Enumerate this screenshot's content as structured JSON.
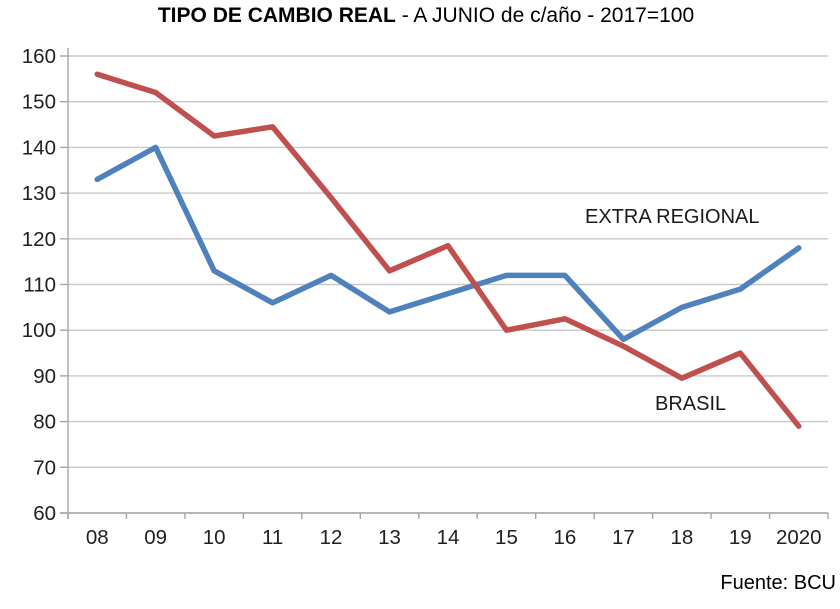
{
  "title": {
    "bold": "TIPO DE CAMBIO REAL",
    "rest": " - A JUNIO de c/año - 2017=100"
  },
  "annotations": {
    "extra_regional": "EXTRA REGIONAL",
    "brasil": "BRASIL"
  },
  "source": "Fuente: BCU",
  "chart_data": {
    "type": "line",
    "categories": [
      "08",
      "09",
      "10",
      "11",
      "12",
      "13",
      "14",
      "15",
      "16",
      "17",
      "18",
      "19",
      "2020"
    ],
    "series": [
      {
        "name": "EXTRA REGIONAL",
        "color": "#4F81BD",
        "values": [
          133,
          140,
          113,
          106,
          112,
          104,
          108,
          112,
          112,
          98,
          105,
          109,
          118
        ]
      },
      {
        "name": "BRASIL",
        "color": "#C0504D",
        "values": [
          156,
          152,
          142.5,
          144.5,
          129,
          113,
          118.5,
          100,
          102.5,
          96.5,
          89.5,
          95,
          79
        ]
      }
    ],
    "title": "TIPO DE CAMBIO REAL - A JUNIO de c/año - 2017=100",
    "xlabel": "",
    "ylabel": "",
    "ylim": [
      60,
      160
    ],
    "ytick_step": 10,
    "grid": true,
    "legend_position": "inline-annotations",
    "grid_color": "#c9c9c9",
    "axis_color": "#a6a6a6",
    "tick_label_color": "#1f1f1f"
  }
}
